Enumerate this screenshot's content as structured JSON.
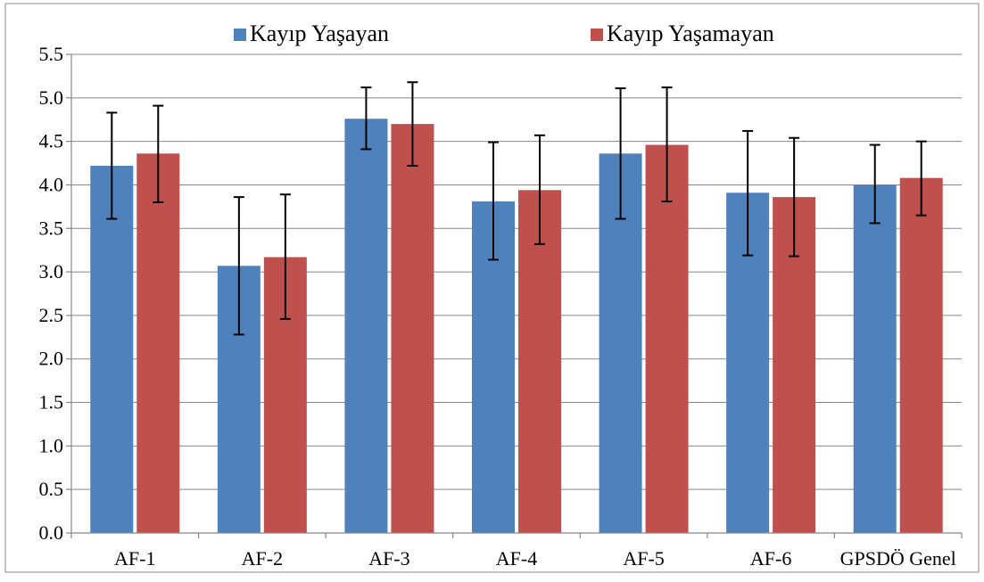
{
  "chart_data": {
    "type": "bar",
    "categories": [
      "AF-1",
      "AF-2",
      "AF-3",
      "AF-4",
      "AF-5",
      "AF-6",
      "GPSDÖ Genel"
    ],
    "series": [
      {
        "name": "Kayıp Yaşayan",
        "color": "#4F81BD",
        "values": [
          4.22,
          3.07,
          4.76,
          3.81,
          4.36,
          3.91,
          4.0
        ],
        "err_low": [
          3.61,
          2.28,
          4.41,
          3.14,
          3.61,
          3.19,
          3.56
        ],
        "err_high": [
          4.83,
          3.86,
          5.12,
          4.49,
          5.11,
          4.62,
          4.46
        ]
      },
      {
        "name": "Kayıp Yaşamayan",
        "color": "#C0504D",
        "values": [
          4.36,
          3.17,
          4.7,
          3.94,
          4.46,
          3.86,
          4.08
        ],
        "err_low": [
          3.8,
          2.46,
          4.22,
          3.32,
          3.81,
          3.18,
          3.65
        ],
        "err_high": [
          4.91,
          3.89,
          5.18,
          4.57,
          5.12,
          4.54,
          4.5
        ]
      }
    ],
    "ylim": [
      0,
      5.5
    ],
    "yticks": [
      "0.0",
      "0.5",
      "1.0",
      "1.5",
      "2.0",
      "2.5",
      "3.0",
      "3.5",
      "4.0",
      "4.5",
      "5.0",
      "5.5"
    ],
    "title": "",
    "xlabel": "",
    "ylabel": "",
    "grid": true,
    "legend_position": "top"
  }
}
